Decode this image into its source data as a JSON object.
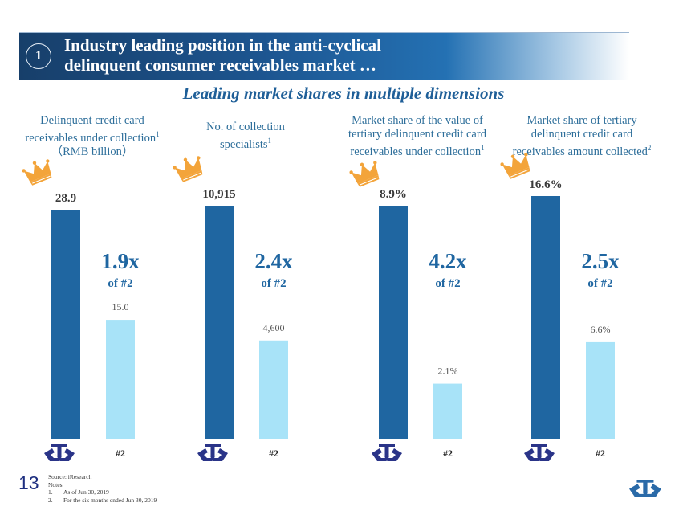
{
  "header": {
    "section_number": "1",
    "title_line1": "Industry leading position in the anti-cyclical",
    "title_line2": "delinquent consumer receivables market …"
  },
  "subtitle": "Leading market shares in multiple dimensions",
  "colors": {
    "leader_bar": "#1f66a1",
    "second_bar": "#a8e3f8",
    "multiplier_text": "#1f66a1",
    "crown": "#f3a43a",
    "logo": "#2a3488"
  },
  "chart_data": [
    {
      "type": "bar",
      "title_lines": [
        "Delinquent credit card",
        "receivables under collection",
        "（RMB billion）"
      ],
      "footnote_mark": "1",
      "categories": [
        "Company (logo)",
        "#2"
      ],
      "values": [
        28.9,
        15.0
      ],
      "value_labels": [
        "28.9",
        "15.0"
      ],
      "multiplier": "1.9x",
      "multiplier_sub": "of #2"
    },
    {
      "type": "bar",
      "title_lines": [
        "No. of collection",
        "specialists"
      ],
      "footnote_mark": "1",
      "categories": [
        "Company (logo)",
        "#2"
      ],
      "values": [
        10915,
        4600
      ],
      "value_labels": [
        "10,915",
        "4,600"
      ],
      "multiplier": "2.4x",
      "multiplier_sub": "of #2"
    },
    {
      "type": "bar",
      "title_lines": [
        "Market share of the value of",
        "tertiary delinquent credit card",
        "receivables under collection"
      ],
      "footnote_mark": "1",
      "categories": [
        "Company (logo)",
        "#2"
      ],
      "values": [
        8.9,
        2.1
      ],
      "value_labels": [
        "8.9%",
        "2.1%"
      ],
      "multiplier": "4.2x",
      "multiplier_sub": "of #2"
    },
    {
      "type": "bar",
      "title_lines": [
        "Market share of tertiary",
        "delinquent credit card",
        "receivables amount collected"
      ],
      "footnote_mark": "2",
      "categories": [
        "Company (logo)",
        "#2"
      ],
      "values": [
        16.6,
        6.6
      ],
      "value_labels": [
        "16.6%",
        "6.6%"
      ],
      "multiplier": "2.5x",
      "multiplier_sub": "of #2"
    }
  ],
  "footer": {
    "page_number": "13",
    "source": "Source: iResearch",
    "notes_label": "Notes:",
    "notes": [
      {
        "num": "1.",
        "text": "As of Jun 30, 2019"
      },
      {
        "num": "2.",
        "text": "For the six months ended Jun 30, 2019"
      }
    ]
  }
}
